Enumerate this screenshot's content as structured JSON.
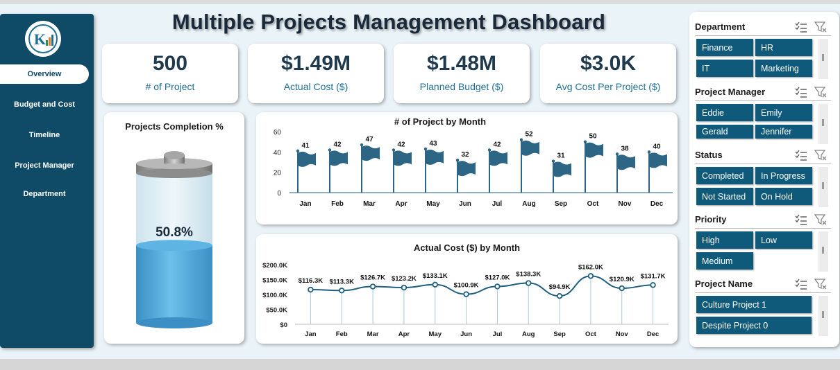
{
  "title": "Multiple Projects Management Dashboard",
  "sidebar": {
    "items": [
      {
        "label": "Overview",
        "active": true
      },
      {
        "label": "Budget and Cost",
        "active": false
      },
      {
        "label": "Timeline",
        "active": false
      },
      {
        "label": "Project Manager",
        "active": false
      },
      {
        "label": "Department",
        "active": false
      }
    ]
  },
  "kpis": [
    {
      "value": "500",
      "label": "# of Project"
    },
    {
      "value": "$1.49M",
      "label": "Actual Cost ($)"
    },
    {
      "value": "$1.48M",
      "label": "Planned Budget ($)"
    },
    {
      "value": "$3.0K",
      "label": "Avg Cost Per Project  ($)"
    }
  ],
  "completion": {
    "title": "Projects Completion %",
    "value_label": "50.8%",
    "fraction": 0.508
  },
  "filters": [
    {
      "title": "Department",
      "options": [
        "Finance",
        "HR",
        "IT",
        "Marketing"
      ]
    },
    {
      "title": "Project Manager",
      "options": [
        "Eddie",
        "Emily",
        "Gerald",
        "Jennifer"
      ]
    },
    {
      "title": "Status",
      "options": [
        "Completed",
        "In Progress",
        "Not Started",
        "On Hold"
      ]
    },
    {
      "title": "Priority",
      "options": [
        "High",
        "Low",
        "Medium"
      ]
    },
    {
      "title": "Project Name",
      "options": [
        "Culture Project 1",
        "Despite Project 0"
      ]
    }
  ],
  "icons": {
    "multiselect": "multi-select-icon",
    "clear_filter": "clear-filter-icon",
    "flag": "flag-icon",
    "battery": "battery-icon"
  },
  "colors": {
    "sidebar": "#0f4a66",
    "chip": "#0f5a7a",
    "flag": "#2d6585",
    "line": "#1f5f80",
    "battery_fill": "#4aa6d8"
  },
  "chart_data": [
    {
      "type": "bar",
      "title": "# of Project  by Month",
      "categories": [
        "Jan",
        "Feb",
        "Mar",
        "Apr",
        "May",
        "Jun",
        "Jul",
        "Aug",
        "Sep",
        "Oct",
        "Nov",
        "Dec"
      ],
      "values": [
        41,
        42,
        47,
        42,
        43,
        32,
        42,
        52,
        31,
        50,
        38,
        40
      ],
      "ylim": [
        0,
        60
      ],
      "yticks": [
        "0",
        "20",
        "40",
        "60"
      ],
      "grid": false
    },
    {
      "type": "line",
      "title": "Actual Cost ($) by Month",
      "categories": [
        "Jan",
        "Feb",
        "Mar",
        "Apr",
        "May",
        "Jun",
        "Jul",
        "Aug",
        "Sep",
        "Oct",
        "Nov",
        "Dec"
      ],
      "values": [
        116.3,
        113.3,
        126.7,
        123.2,
        133.1,
        100.9,
        127.0,
        138.3,
        94.9,
        162.0,
        120.9,
        131.7
      ],
      "data_labels": [
        "$116.3K",
        "$113.3K",
        "$126.7K",
        "$123.2K",
        "$133.1K",
        "$100.9K",
        "$127.0K",
        "$138.3K",
        "$94.9K",
        "$162.0K",
        "$120.9K",
        "$131.7K"
      ],
      "ylim": [
        0,
        200
      ],
      "yticks": [
        "$0",
        "$50.0K",
        "$100.0K",
        "$150.0K",
        "$200.0K"
      ],
      "grid": false
    }
  ]
}
